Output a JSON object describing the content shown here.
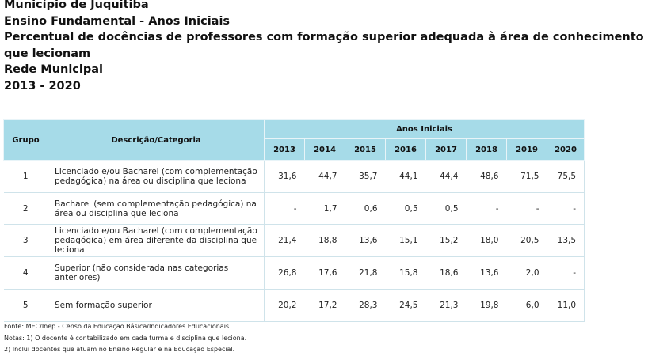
{
  "header": {
    "municipio": "Município de Juquitiba",
    "ensino": "Ensino Fundamental - Anos Iniciais",
    "indicador": "Percentual de docências de professores com formação superior adequada à área de conhecimento que lecionam",
    "rede": "Rede Municipal",
    "periodo": "2013 - 2020"
  },
  "table": {
    "col_grupo": "Grupo",
    "col_descricao": "Descrição/Categoria",
    "col_group_years": "Anos Iniciais",
    "years": [
      "2013",
      "2014",
      "2015",
      "2016",
      "2017",
      "2018",
      "2019",
      "2020"
    ],
    "rows": [
      {
        "grupo": "1",
        "descricao": "Licenciado e/ou Bacharel (com complementação pedagógica) na área ou disciplina que leciona",
        "values": [
          "31,6",
          "44,7",
          "35,7",
          "44,1",
          "44,4",
          "48,6",
          "71,5",
          "75,5"
        ]
      },
      {
        "grupo": "2",
        "descricao": "Bacharel  (sem complementação pedagógica) na área ou disciplina que leciona",
        "values": [
          "-",
          "1,7",
          "0,6",
          "0,5",
          "0,5",
          "-",
          "-",
          "-"
        ]
      },
      {
        "grupo": "3",
        "descricao": "Licenciado  e/ou Bacharel (com complementação pedagógica) em área diferente da  disciplina que leciona",
        "values": [
          "21,4",
          "18,8",
          "13,6",
          "15,1",
          "15,2",
          "18,0",
          "20,5",
          "13,5"
        ]
      },
      {
        "grupo": "4",
        "descricao": "Superior (não considerada  nas categorias anteriores)",
        "values": [
          "26,8",
          "17,6",
          "21,8",
          "15,8",
          "18,6",
          "13,6",
          "2,0",
          "-"
        ]
      },
      {
        "grupo": "5",
        "descricao": "Sem formação superior",
        "values": [
          "20,2",
          "17,2",
          "28,3",
          "24,5",
          "21,3",
          "19,8",
          "6,0",
          "11,0"
        ]
      }
    ]
  },
  "notes": {
    "fonte": "Fonte: MEC/Inep - Censo da Educação Básica/Indicadores Educacionais.",
    "nota1": "Notas:  1) O docente é contabilizado em cada turma e disciplina que leciona.",
    "nota2": "2) Inclui docentes que atuam no Ensino Regular e na Educação Especial."
  }
}
